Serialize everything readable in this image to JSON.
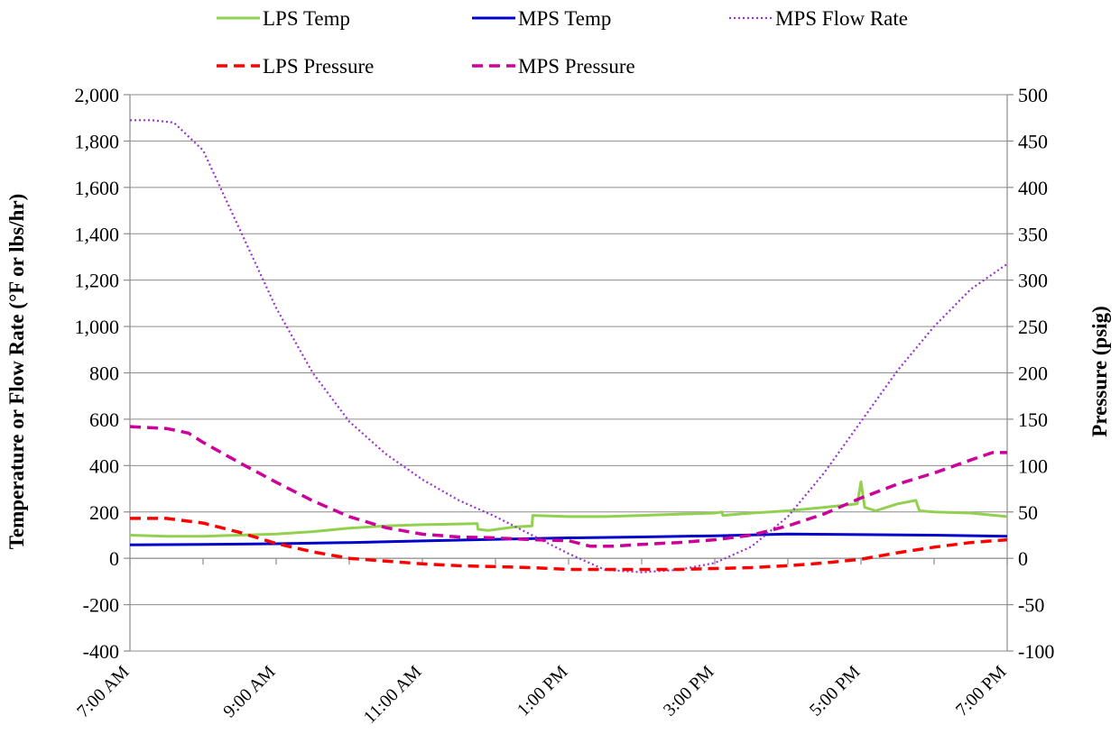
{
  "chart_data": {
    "type": "line",
    "x_label": "",
    "y_left_label": "Temperature or Flow Rate (°F or lbs/hr)",
    "y_right_label": "Pressure (psig)",
    "x_ticks": [
      "7:00 AM",
      "9:00 AM",
      "11:00 AM",
      "1:00 PM",
      "3:00 PM",
      "5:00 PM",
      "7:00 PM"
    ],
    "x_range_hours": [
      7,
      19
    ],
    "y_left_range": [
      -400,
      2000
    ],
    "y_left_ticks": [
      -400,
      -200,
      0,
      200,
      400,
      600,
      800,
      1000,
      1200,
      1400,
      1600,
      1800,
      2000
    ],
    "y_left_tick_labels": [
      "-400",
      "-200",
      "0",
      "200",
      "400",
      "600",
      "800",
      "1,000",
      "1,200",
      "1,400",
      "1,600",
      "1,800",
      "2,000"
    ],
    "y_right_range": [
      -100,
      500
    ],
    "y_right_ticks": [
      -100,
      -50,
      0,
      50,
      100,
      150,
      200,
      250,
      300,
      350,
      400,
      450,
      500
    ],
    "y_right_tick_labels": [
      "-100",
      "-50",
      "0",
      "50",
      "100",
      "150",
      "200",
      "250",
      "300",
      "350",
      "400",
      "450",
      "500"
    ],
    "grid": "horizontal",
    "legend_placement": "top",
    "series": [
      {
        "name": "LPS Temp",
        "axis": "left",
        "color": "#92d050",
        "style": "solid",
        "x": [
          7.0,
          7.5,
          8.0,
          8.5,
          9.0,
          9.5,
          10.0,
          10.5,
          11.0,
          11.5,
          11.75,
          11.76,
          11.9,
          12.25,
          12.5,
          12.51,
          13.0,
          13.5,
          14.0,
          14.5,
          15.0,
          15.1,
          15.11,
          15.5,
          16.0,
          16.5,
          16.95,
          17.0,
          17.05,
          17.1,
          17.2,
          17.5,
          17.75,
          17.8,
          18.0,
          18.5,
          19.0
        ],
        "y": [
          100,
          95,
          95,
          100,
          105,
          115,
          130,
          140,
          145,
          148,
          150,
          125,
          120,
          135,
          140,
          185,
          180,
          180,
          185,
          190,
          195,
          200,
          185,
          195,
          205,
          220,
          235,
          330,
          220,
          215,
          205,
          235,
          250,
          205,
          200,
          195,
          180
        ]
      },
      {
        "name": "MPS Temp",
        "axis": "left",
        "color": "#0000cc",
        "style": "solid",
        "x": [
          7,
          8,
          9,
          10,
          11,
          12,
          13,
          14,
          15,
          16,
          17,
          18,
          19
        ],
        "y": [
          58,
          60,
          63,
          68,
          75,
          82,
          88,
          92,
          97,
          105,
          102,
          100,
          95
        ]
      },
      {
        "name": "MPS Flow Rate",
        "axis": "left",
        "color": "#9933cc",
        "style": "dotted",
        "x": [
          7.0,
          7.3,
          7.6,
          8.0,
          8.5,
          9.0,
          9.5,
          10.0,
          10.5,
          11.0,
          11.5,
          12.0,
          12.5,
          13.0,
          13.5,
          14.0,
          14.5,
          15.0,
          15.5,
          16.0,
          16.5,
          17.0,
          17.5,
          18.0,
          18.5,
          19.0
        ],
        "y": [
          1890,
          1890,
          1880,
          1760,
          1420,
          1080,
          800,
          590,
          450,
          340,
          250,
          180,
          100,
          20,
          -50,
          -60,
          -50,
          -20,
          50,
          180,
          370,
          590,
          810,
          1000,
          1160,
          1270
        ]
      },
      {
        "name": "LPS Pressure",
        "axis": "right",
        "color": "#ff0000",
        "style": "dashed",
        "x": [
          7.0,
          7.5,
          8.0,
          8.5,
          9.0,
          9.5,
          10.0,
          10.5,
          11.0,
          11.5,
          12.0,
          12.5,
          13.0,
          13.5,
          14.0,
          14.5,
          15.0,
          15.5,
          16.0,
          16.5,
          17.0,
          17.5,
          18.0,
          18.5,
          19.0
        ],
        "y": [
          43,
          43,
          38,
          28,
          16,
          7,
          0,
          -3,
          -6,
          -8,
          -9,
          -10,
          -12,
          -12,
          -12,
          -12,
          -11,
          -10,
          -8,
          -5,
          -1,
          6,
          12,
          17,
          20
        ]
      },
      {
        "name": "MPS Pressure",
        "axis": "right",
        "color": "#cc0099",
        "style": "dashed",
        "x": [
          7.0,
          7.5,
          7.8,
          8.0,
          8.5,
          9.0,
          9.5,
          10.0,
          10.5,
          11.0,
          11.5,
          12.0,
          12.5,
          13.0,
          13.3,
          13.6,
          14.0,
          14.5,
          15.0,
          15.5,
          16.0,
          16.5,
          17.0,
          17.5,
          18.0,
          18.5,
          18.8,
          19.0
        ],
        "y": [
          142,
          140,
          135,
          125,
          103,
          82,
          62,
          45,
          33,
          26,
          23,
          22,
          20,
          19,
          13,
          13,
          15,
          17,
          20,
          25,
          35,
          48,
          65,
          80,
          92,
          106,
          114,
          114
        ]
      }
    ]
  }
}
